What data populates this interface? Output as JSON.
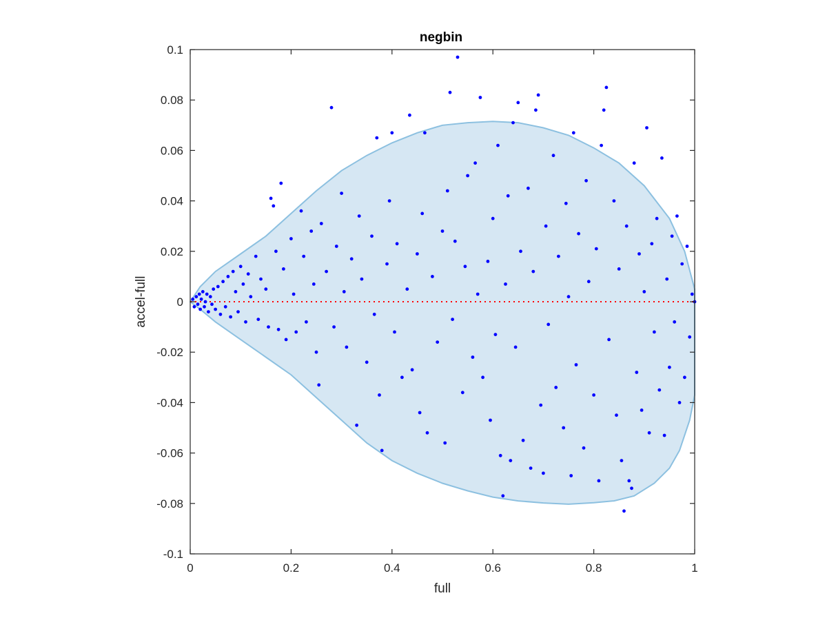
{
  "chart_data": {
    "type": "scatter",
    "title": "negbin",
    "xlabel": "full",
    "ylabel": "accel-full",
    "xlim": [
      0,
      1
    ],
    "ylim": [
      -0.1,
      0.1
    ],
    "xticks": [
      "0",
      "0.2",
      "0.4",
      "0.6",
      "0.8",
      "1"
    ],
    "yticks": [
      "-0.1",
      "-0.08",
      "-0.06",
      "-0.04",
      "-0.02",
      "0",
      "0.02",
      "0.04",
      "0.06",
      "0.08",
      "0.1"
    ],
    "grid": false,
    "reference_line": {
      "y": 0,
      "style": "dotted",
      "color": "#ff0000"
    },
    "envelope": {
      "fill": "#d6e7f3",
      "stroke": "#8cc0e0",
      "upper": [
        [
          0,
          0
        ],
        [
          0.02,
          0.006
        ],
        [
          0.05,
          0.012
        ],
        [
          0.1,
          0.019
        ],
        [
          0.15,
          0.026
        ],
        [
          0.2,
          0.035
        ],
        [
          0.25,
          0.044
        ],
        [
          0.3,
          0.052
        ],
        [
          0.35,
          0.058
        ],
        [
          0.4,
          0.063
        ],
        [
          0.45,
          0.067
        ],
        [
          0.5,
          0.07
        ],
        [
          0.55,
          0.071
        ],
        [
          0.6,
          0.0715
        ],
        [
          0.65,
          0.071
        ],
        [
          0.7,
          0.069
        ],
        [
          0.75,
          0.066
        ],
        [
          0.8,
          0.061
        ],
        [
          0.85,
          0.055
        ],
        [
          0.9,
          0.046
        ],
        [
          0.95,
          0.033
        ],
        [
          0.98,
          0.02
        ],
        [
          1.0,
          0.005
        ]
      ],
      "lower": [
        [
          1.0,
          -0.037
        ],
        [
          0.99,
          -0.047
        ],
        [
          0.97,
          -0.059
        ],
        [
          0.95,
          -0.066
        ],
        [
          0.92,
          -0.072
        ],
        [
          0.88,
          -0.077
        ],
        [
          0.84,
          -0.079
        ],
        [
          0.8,
          -0.0797
        ],
        [
          0.75,
          -0.0803
        ],
        [
          0.7,
          -0.0798
        ],
        [
          0.65,
          -0.079
        ],
        [
          0.6,
          -0.0775
        ],
        [
          0.55,
          -0.075
        ],
        [
          0.5,
          -0.072
        ],
        [
          0.45,
          -0.068
        ],
        [
          0.4,
          -0.063
        ],
        [
          0.35,
          -0.056
        ],
        [
          0.3,
          -0.047
        ],
        [
          0.25,
          -0.038
        ],
        [
          0.2,
          -0.029
        ],
        [
          0.15,
          -0.022
        ],
        [
          0.1,
          -0.015
        ],
        [
          0.05,
          -0.008
        ],
        [
          0.02,
          -0.003
        ],
        [
          0,
          0
        ]
      ]
    },
    "series": [
      {
        "marker_color": "#0000ff",
        "points": [
          [
            0.005,
            0.001
          ],
          [
            0.008,
            -0.002
          ],
          [
            0.012,
            0.002
          ],
          [
            0.015,
            -0.001
          ],
          [
            0.018,
            0.003
          ],
          [
            0.02,
            -0.003
          ],
          [
            0.022,
            0.001
          ],
          [
            0.025,
            0.004
          ],
          [
            0.028,
            -0.002
          ],
          [
            0.03,
            0.0
          ],
          [
            0.033,
            0.003
          ],
          [
            0.036,
            -0.004
          ],
          [
            0.04,
            0.002
          ],
          [
            0.043,
            -0.001
          ],
          [
            0.046,
            0.005
          ],
          [
            0.05,
            -0.003
          ],
          [
            0.055,
            0.006
          ],
          [
            0.06,
            -0.005
          ],
          [
            0.065,
            0.008
          ],
          [
            0.07,
            -0.002
          ],
          [
            0.075,
            0.01
          ],
          [
            0.08,
            -0.006
          ],
          [
            0.085,
            0.012
          ],
          [
            0.09,
            0.004
          ],
          [
            0.095,
            -0.004
          ],
          [
            0.1,
            0.014
          ],
          [
            0.105,
            0.007
          ],
          [
            0.11,
            -0.008
          ],
          [
            0.115,
            0.011
          ],
          [
            0.12,
            0.002
          ],
          [
            0.13,
            0.018
          ],
          [
            0.135,
            -0.007
          ],
          [
            0.14,
            0.009
          ],
          [
            0.15,
            0.005
          ],
          [
            0.155,
            -0.01
          ],
          [
            0.16,
            0.041
          ],
          [
            0.165,
            0.038
          ],
          [
            0.17,
            0.02
          ],
          [
            0.175,
            -0.011
          ],
          [
            0.18,
            0.047
          ],
          [
            0.185,
            0.013
          ],
          [
            0.19,
            -0.015
          ],
          [
            0.2,
            0.025
          ],
          [
            0.205,
            0.003
          ],
          [
            0.21,
            -0.012
          ],
          [
            0.22,
            0.036
          ],
          [
            0.225,
            0.018
          ],
          [
            0.23,
            -0.008
          ],
          [
            0.24,
            0.028
          ],
          [
            0.245,
            0.007
          ],
          [
            0.25,
            -0.02
          ],
          [
            0.255,
            -0.033
          ],
          [
            0.26,
            0.031
          ],
          [
            0.27,
            0.012
          ],
          [
            0.28,
            0.077
          ],
          [
            0.285,
            -0.01
          ],
          [
            0.29,
            0.022
          ],
          [
            0.3,
            0.043
          ],
          [
            0.305,
            0.004
          ],
          [
            0.31,
            -0.018
          ],
          [
            0.32,
            0.017
          ],
          [
            0.33,
            -0.049
          ],
          [
            0.335,
            0.034
          ],
          [
            0.34,
            0.009
          ],
          [
            0.35,
            -0.024
          ],
          [
            0.36,
            0.026
          ],
          [
            0.365,
            -0.005
          ],
          [
            0.37,
            0.065
          ],
          [
            0.375,
            -0.037
          ],
          [
            0.38,
            -0.059
          ],
          [
            0.39,
            0.015
          ],
          [
            0.395,
            0.04
          ],
          [
            0.4,
            0.067
          ],
          [
            0.405,
            -0.012
          ],
          [
            0.41,
            0.023
          ],
          [
            0.42,
            -0.03
          ],
          [
            0.43,
            0.005
          ],
          [
            0.435,
            0.074
          ],
          [
            0.44,
            -0.027
          ],
          [
            0.45,
            0.019
          ],
          [
            0.455,
            -0.044
          ],
          [
            0.46,
            0.035
          ],
          [
            0.465,
            0.067
          ],
          [
            0.47,
            -0.052
          ],
          [
            0.48,
            0.01
          ],
          [
            0.49,
            -0.016
          ],
          [
            0.5,
            0.028
          ],
          [
            0.505,
            -0.056
          ],
          [
            0.51,
            0.044
          ],
          [
            0.515,
            0.083
          ],
          [
            0.52,
            -0.007
          ],
          [
            0.525,
            0.024
          ],
          [
            0.53,
            0.097
          ],
          [
            0.54,
            -0.036
          ],
          [
            0.545,
            0.014
          ],
          [
            0.55,
            0.05
          ],
          [
            0.56,
            -0.022
          ],
          [
            0.565,
            0.055
          ],
          [
            0.57,
            0.003
          ],
          [
            0.575,
            0.081
          ],
          [
            0.58,
            -0.03
          ],
          [
            0.59,
            0.016
          ],
          [
            0.595,
            -0.047
          ],
          [
            0.6,
            0.033
          ],
          [
            0.605,
            -0.013
          ],
          [
            0.61,
            0.062
          ],
          [
            0.615,
            -0.061
          ],
          [
            0.62,
            -0.077
          ],
          [
            0.625,
            0.007
          ],
          [
            0.63,
            0.042
          ],
          [
            0.635,
            -0.063
          ],
          [
            0.64,
            0.071
          ],
          [
            0.645,
            -0.018
          ],
          [
            0.65,
            0.079
          ],
          [
            0.655,
            0.02
          ],
          [
            0.66,
            -0.055
          ],
          [
            0.67,
            0.045
          ],
          [
            0.675,
            -0.066
          ],
          [
            0.68,
            0.012
          ],
          [
            0.685,
            0.076
          ],
          [
            0.69,
            0.082
          ],
          [
            0.695,
            -0.041
          ],
          [
            0.7,
            -0.068
          ],
          [
            0.705,
            0.03
          ],
          [
            0.71,
            -0.009
          ],
          [
            0.72,
            0.058
          ],
          [
            0.725,
            -0.034
          ],
          [
            0.73,
            0.018
          ],
          [
            0.74,
            -0.05
          ],
          [
            0.745,
            0.039
          ],
          [
            0.75,
            0.002
          ],
          [
            0.755,
            -0.069
          ],
          [
            0.76,
            0.067
          ],
          [
            0.765,
            -0.025
          ],
          [
            0.77,
            0.027
          ],
          [
            0.78,
            -0.058
          ],
          [
            0.785,
            0.048
          ],
          [
            0.79,
            0.008
          ],
          [
            0.8,
            -0.037
          ],
          [
            0.805,
            0.021
          ],
          [
            0.81,
            -0.071
          ],
          [
            0.815,
            0.062
          ],
          [
            0.82,
            0.076
          ],
          [
            0.825,
            0.085
          ],
          [
            0.83,
            -0.015
          ],
          [
            0.84,
            0.04
          ],
          [
            0.845,
            -0.045
          ],
          [
            0.85,
            0.013
          ],
          [
            0.855,
            -0.063
          ],
          [
            0.86,
            -0.083
          ],
          [
            0.865,
            0.03
          ],
          [
            0.87,
            -0.071
          ],
          [
            0.875,
            -0.074
          ],
          [
            0.88,
            0.055
          ],
          [
            0.885,
            -0.028
          ],
          [
            0.89,
            0.019
          ],
          [
            0.895,
            -0.043
          ],
          [
            0.9,
            0.004
          ],
          [
            0.905,
            0.069
          ],
          [
            0.91,
            -0.052
          ],
          [
            0.915,
            0.023
          ],
          [
            0.92,
            -0.012
          ],
          [
            0.925,
            0.033
          ],
          [
            0.93,
            -0.035
          ],
          [
            0.935,
            0.057
          ],
          [
            0.94,
            -0.053
          ],
          [
            0.945,
            0.009
          ],
          [
            0.95,
            -0.026
          ],
          [
            0.955,
            0.026
          ],
          [
            0.96,
            -0.008
          ],
          [
            0.965,
            0.034
          ],
          [
            0.97,
            -0.04
          ],
          [
            0.975,
            0.015
          ],
          [
            0.98,
            -0.03
          ],
          [
            0.985,
            0.022
          ],
          [
            0.99,
            -0.014
          ],
          [
            0.995,
            0.003
          ],
          [
            1.0,
            0.0
          ]
        ]
      }
    ]
  }
}
